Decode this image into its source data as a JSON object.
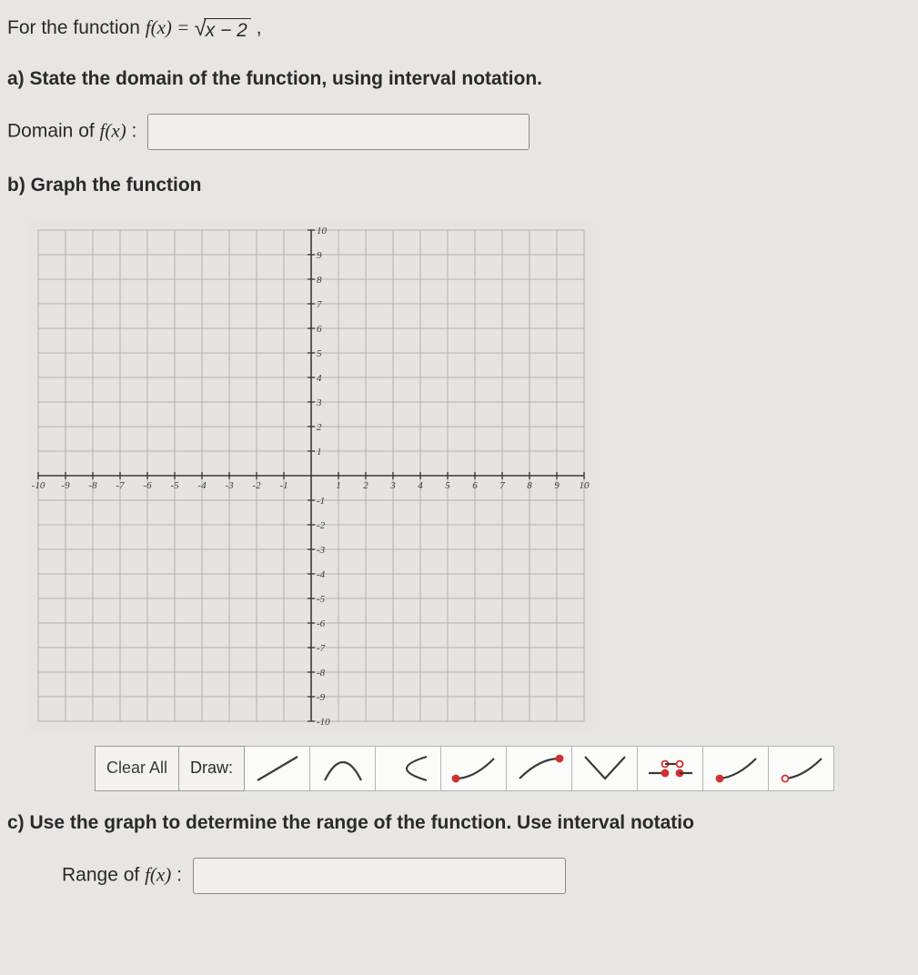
{
  "intro": {
    "prefix": "For the function ",
    "func_lhs": "f(x) = ",
    "radicand": "x − 2",
    "suffix": " ,"
  },
  "partA": {
    "prompt": "a) State the domain of the function, using interval notation.",
    "label_prefix": "Domain of ",
    "label_func": "f(x)",
    "label_colon": " :"
  },
  "partB": {
    "prompt": "b) Graph the function"
  },
  "graph": {
    "xmin": -10,
    "xmax": 10,
    "ymin": -10,
    "ymax": 10,
    "axis_color": "#3a3a38",
    "grid_color": "#b4b2ae",
    "bg": "#e6e4e0",
    "tick_font": 11,
    "x_ticks": [
      -10,
      -9,
      -8,
      -7,
      -6,
      -5,
      -4,
      -3,
      -2,
      -1,
      1,
      2,
      3,
      4,
      5,
      6,
      7,
      8,
      9,
      10
    ],
    "y_ticks": [
      -10,
      -9,
      -8,
      -7,
      -6,
      -5,
      -4,
      -3,
      -2,
      -1,
      1,
      2,
      3,
      4,
      5,
      6,
      7,
      8,
      9,
      10
    ]
  },
  "toolbar": {
    "clear": "Clear All",
    "draw": "Draw:",
    "icon_stroke": "#3a3a3a",
    "point_fill": "#d03030",
    "icons": [
      "line",
      "parabola",
      "sideways-parabola",
      "curve-closed-left",
      "curve-closed-right",
      "v-shape",
      "piecewise",
      "ray-closed",
      "ray-open"
    ]
  },
  "partC": {
    "prompt": "c) Use the graph to determine the range of the function.  Use interval notatio",
    "label_prefix": "Range of ",
    "label_func": "f(x)",
    "label_colon": " :"
  },
  "input_widths": {
    "domain": 420,
    "range": 410
  }
}
